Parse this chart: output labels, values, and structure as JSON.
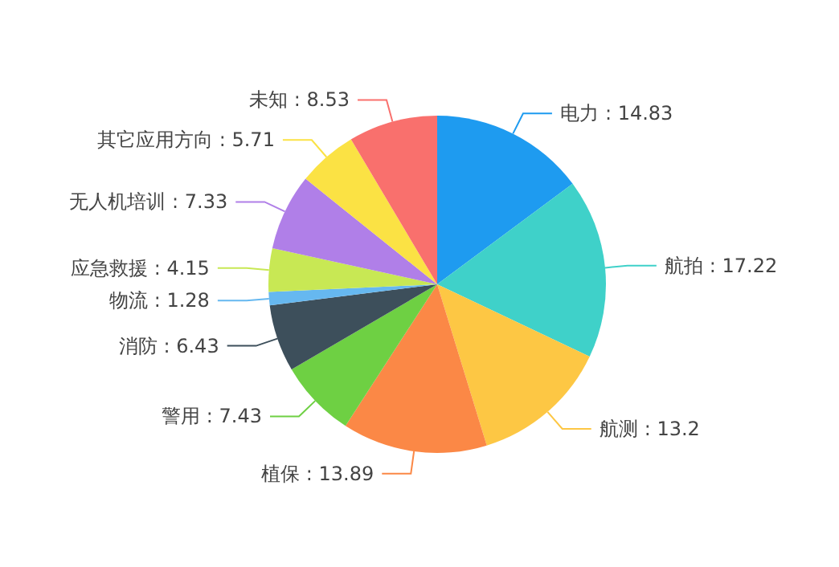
{
  "chart_data": {
    "type": "pie",
    "categories": [
      "电力",
      "航拍",
      "航测",
      "植保",
      "警用",
      "消防",
      "物流",
      "应急救援",
      "无人机培训",
      "其它应用方向",
      "未知"
    ],
    "values": [
      14.83,
      17.22,
      13.2,
      13.89,
      7.43,
      6.43,
      1.28,
      4.15,
      7.33,
      5.71,
      8.53
    ],
    "value_labels": [
      ": 14.83",
      ": 17.22",
      ": 13.2",
      ": 13.89",
      ": 7.43",
      ": 6.43",
      ": 1.28",
      ": 4.15",
      ": 7.33",
      ": 5.71",
      ": 8.53"
    ],
    "colors": [
      "#1e9bf0",
      "#3fd1c9",
      "#fdc744",
      "#fb8846",
      "#6ed043",
      "#3d4f5b",
      "#66b8f0",
      "#c8e854",
      "#b07fe8",
      "#fbe244",
      "#f9706d"
    ],
    "legend": false
  }
}
